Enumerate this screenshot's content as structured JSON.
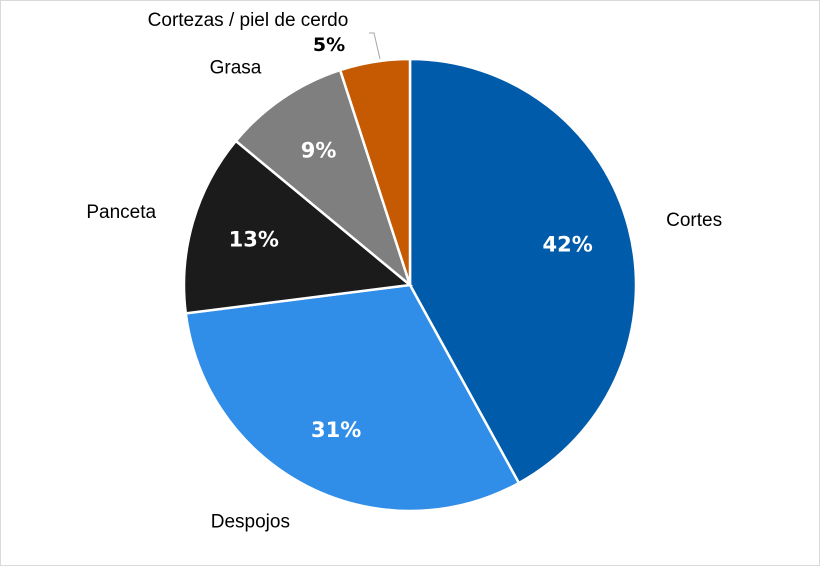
{
  "chart_data": {
    "type": "pie",
    "title": "",
    "start": "top-clockwise",
    "slices": [
      {
        "label": "Cortes",
        "value": 42,
        "display": "42%",
        "color": "#005CAB"
      },
      {
        "label": "Despojos",
        "value": 31,
        "display": "31%",
        "color": "#308DE8"
      },
      {
        "label": "Panceta",
        "value": 13,
        "display": "13%",
        "color": "#1B1B1B"
      },
      {
        "label": "Grasa",
        "value": 9,
        "display": "9%",
        "color": "#7F7F7F"
      },
      {
        "label": "Cortezas / piel de cerdo",
        "value": 5,
        "display": "5%",
        "color": "#C55A03"
      }
    ]
  }
}
